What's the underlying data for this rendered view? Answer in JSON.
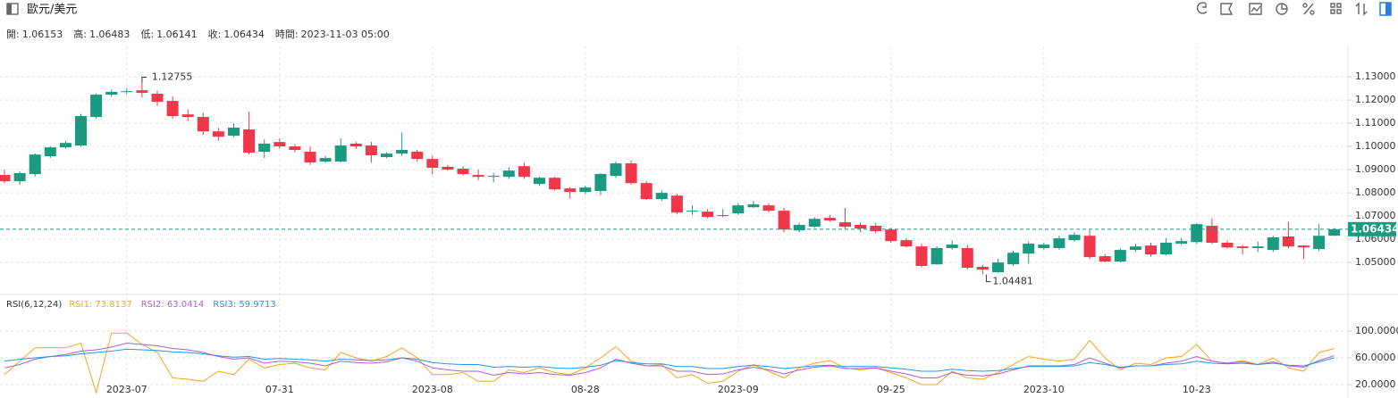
{
  "header": {
    "title": "歐元/美元",
    "info": [
      {
        "label": "開:",
        "value": 1.06153,
        "color": "#f0384a"
      },
      {
        "label": "高:",
        "value": 1.06483,
        "color": "#1a9a80"
      },
      {
        "label": "低:",
        "value": 1.06141,
        "color": "#f0384a"
      },
      {
        "label": "收:",
        "value": 1.06434,
        "color": "#1a9a80"
      },
      {
        "label": "時間:",
        "value": "2023-11-03 05:00",
        "color": "#222222"
      }
    ]
  },
  "chart_data": [
    {
      "type": "candlestick",
      "categories": [
        null,
        null,
        null,
        null,
        null,
        null,
        null,
        null,
        "2023-07",
        null,
        null,
        null,
        null,
        null,
        null,
        null,
        null,
        null,
        "07-31",
        null,
        null,
        null,
        null,
        null,
        null,
        null,
        null,
        null,
        "2023-08",
        null,
        null,
        null,
        null,
        null,
        null,
        null,
        null,
        null,
        "08-28",
        null,
        null,
        null,
        null,
        null,
        null,
        null,
        null,
        null,
        "2023-09",
        null,
        null,
        null,
        null,
        null,
        null,
        null,
        null,
        null,
        "09-25",
        null,
        null,
        null,
        null,
        null,
        null,
        null,
        null,
        null,
        "2023-10",
        null,
        null,
        null,
        null,
        null,
        null,
        null,
        null,
        null,
        "10-23",
        null,
        null,
        null,
        null,
        null,
        null,
        null,
        null,
        null
      ],
      "open": [
        1.0877,
        1.085,
        1.0881,
        1.0958,
        1.0996,
        1.1004,
        1.1127,
        1.1223,
        1.1235,
        1.1242,
        1.1227,
        1.1196,
        1.1138,
        1.1127,
        1.1065,
        1.1046,
        1.1073,
        1.0977,
        1.1019,
        1.1,
        1.0977,
        1.0935,
        1.0935,
        1.1012,
        1.1004,
        1.0954,
        1.0969,
        1.0977,
        1.0946,
        1.0912,
        1.0904,
        1.0877,
        1.0869,
        1.0869,
        1.0915,
        1.0838,
        1.0865,
        1.0819,
        1.0804,
        1.0808,
        1.0873,
        1.0927,
        1.0842,
        1.0773,
        1.0788,
        1.0719,
        1.0719,
        1.07,
        1.0712,
        1.0738,
        1.0746,
        1.0723,
        1.0638,
        1.0654,
        1.0692,
        1.0673,
        1.0662,
        1.0658,
        1.0642,
        1.0596,
        1.0569,
        1.0492,
        1.0562,
        1.0562,
        1.0481,
        1.0458,
        1.0492,
        1.0538,
        1.0562,
        1.0562,
        1.0596,
        1.0615,
        1.0527,
        1.0504,
        1.0554,
        1.0573,
        1.0535,
        1.0581,
        1.0588,
        1.0658,
        1.0585,
        1.0569,
        1.0562,
        1.0554,
        1.0612,
        1.0573,
        1.0558,
        1.06153
      ],
      "high": [
        1.09,
        1.0892,
        1.097,
        1.1,
        1.1025,
        1.114,
        1.1228,
        1.1245,
        1.125,
        1.12755,
        1.124,
        1.1215,
        1.116,
        1.1145,
        1.108,
        1.11,
        1.115,
        1.103,
        1.1035,
        1.101,
        1.1,
        1.096,
        1.1035,
        1.102,
        1.102,
        1.0975,
        1.106,
        1.0985,
        1.096,
        1.092,
        1.0915,
        1.09,
        1.0885,
        1.091,
        1.093,
        1.087,
        1.087,
        1.0825,
        1.083,
        1.0885,
        1.0935,
        1.094,
        1.085,
        1.081,
        1.0795,
        1.0745,
        1.073,
        1.073,
        1.0755,
        1.0765,
        1.0755,
        1.0735,
        1.067,
        1.0695,
        1.0705,
        1.0735,
        1.067,
        1.067,
        1.065,
        1.0605,
        1.058,
        1.057,
        1.0595,
        1.0575,
        1.049,
        1.0515,
        1.055,
        1.059,
        1.0585,
        1.0615,
        1.063,
        1.064,
        1.0535,
        1.056,
        1.058,
        1.0585,
        1.0605,
        1.0605,
        1.067,
        1.069,
        1.0595,
        1.0575,
        1.059,
        1.0615,
        1.0675,
        1.0575,
        1.0665,
        1.06483
      ],
      "low": [
        1.0842,
        1.0835,
        1.087,
        1.095,
        1.099,
        1.1,
        1.112,
        1.1215,
        1.1225,
        1.121,
        1.1175,
        1.112,
        1.111,
        1.105,
        1.1025,
        1.104,
        1.0965,
        1.095,
        1.099,
        1.0975,
        1.092,
        1.093,
        1.093,
        1.099,
        1.093,
        1.095,
        1.096,
        1.0935,
        1.088,
        1.0895,
        1.0875,
        1.0855,
        1.0845,
        1.086,
        1.086,
        1.083,
        1.081,
        1.0775,
        1.0795,
        1.079,
        1.0865,
        1.0835,
        1.077,
        1.0765,
        1.071,
        1.0705,
        1.069,
        1.0695,
        1.0705,
        1.0735,
        1.0715,
        1.063,
        1.063,
        1.065,
        1.0675,
        1.0645,
        1.063,
        1.0625,
        1.0585,
        1.0565,
        1.048,
        1.049,
        1.0555,
        1.047,
        1.04481,
        1.0455,
        1.0485,
        1.0495,
        1.0555,
        1.0555,
        1.059,
        1.0515,
        1.05,
        1.05,
        1.0545,
        1.0525,
        1.053,
        1.0575,
        1.058,
        1.058,
        1.056,
        1.0535,
        1.0545,
        1.0545,
        1.056,
        1.0515,
        1.055,
        1.06141
      ],
      "close": [
        1.085,
        1.0885,
        1.0965,
        1.0996,
        1.1015,
        1.1131,
        1.1223,
        1.1235,
        1.1238,
        1.1231,
        1.1192,
        1.1131,
        1.1127,
        1.1065,
        1.1042,
        1.1081,
        1.0973,
        1.1012,
        1.1,
        1.0985,
        1.0931,
        1.095,
        1.1004,
        1.1,
        1.0962,
        1.0969,
        1.0985,
        1.0946,
        1.0908,
        1.09,
        1.0881,
        1.0869,
        1.0873,
        1.0896,
        1.0869,
        1.0865,
        1.0815,
        1.0804,
        1.0823,
        1.0881,
        1.0927,
        1.0842,
        1.0773,
        1.08,
        1.0715,
        1.0723,
        1.0696,
        1.0704,
        1.0746,
        1.075,
        1.0723,
        1.0642,
        1.0662,
        1.0688,
        1.0681,
        1.0654,
        1.0646,
        1.0635,
        1.0592,
        1.0569,
        1.0485,
        1.0562,
        1.0577,
        1.0477,
        1.0469,
        1.05,
        1.0542,
        1.0581,
        1.0577,
        1.0604,
        1.0619,
        1.0523,
        1.0504,
        1.0554,
        1.0569,
        1.0535,
        1.0585,
        1.0592,
        1.0665,
        1.0585,
        1.0565,
        1.0562,
        1.0569,
        1.0608,
        1.0569,
        1.0565,
        1.0615,
        1.06434
      ],
      "up_color": "#1a9a80",
      "down_color": "#f0384a",
      "ylim": [
        1.0362,
        1.1431
      ],
      "yticks": [
        {
          "value": 1.05,
          "label": "1.05000"
        },
        {
          "value": 1.06,
          "label": "1.06000"
        },
        {
          "value": 1.07,
          "label": "1.07000"
        },
        {
          "value": 1.08,
          "label": "1.08000"
        },
        {
          "value": 1.09,
          "label": "1.09000"
        },
        {
          "value": 1.1,
          "label": "1.10000"
        },
        {
          "value": 1.11,
          "label": "1.11000"
        },
        {
          "value": 1.12,
          "label": "1.12000"
        },
        {
          "value": 1.13,
          "label": "1.13000"
        }
      ],
      "grid": true,
      "last_price": {
        "value": 1.06434,
        "label": "1.06434"
      },
      "annotations": [
        {
          "value": 1.12755,
          "label": "1.12755"
        },
        {
          "value": 1.04481,
          "label": "1.04481"
        }
      ]
    },
    {
      "type": "line",
      "title": "RSI(6,12,24)",
      "series": [
        {
          "name": "RSI1: 73.8137",
          "color": "#f5a623",
          "values": [
            35,
            55,
            75,
            75,
            75,
            82,
            8,
            97,
            97,
            80,
            68,
            30,
            28,
            25,
            40,
            35,
            58,
            45,
            50,
            52,
            45,
            42,
            68,
            60,
            55,
            62,
            75,
            60,
            35,
            35,
            38,
            25,
            25,
            42,
            38,
            45,
            38,
            35,
            45,
            60,
            77,
            55,
            48,
            50,
            30,
            35,
            22,
            25,
            40,
            50,
            40,
            30,
            45,
            52,
            56,
            45,
            42,
            45,
            38,
            30,
            20,
            20,
            40,
            30,
            28,
            38,
            50,
            62,
            58,
            55,
            58,
            86,
            60,
            42,
            52,
            50,
            60,
            62,
            80,
            55,
            52,
            56,
            50,
            60,
            45,
            40,
            68,
            73.8137
          ]
        },
        {
          "name": "RSI2: 63.0414",
          "color": "#b15fd1",
          "values": [
            45,
            50,
            58,
            62,
            65,
            70,
            72,
            76,
            82,
            80,
            78,
            74,
            72,
            68,
            62,
            58,
            60,
            52,
            55,
            54,
            52,
            48,
            55,
            53,
            52,
            54,
            60,
            55,
            45,
            42,
            40,
            40,
            34,
            38,
            36,
            38,
            35,
            34,
            38,
            45,
            58,
            52,
            48,
            48,
            40,
            40,
            35,
            36,
            42,
            46,
            42,
            36,
            42,
            46,
            48,
            44,
            44,
            45,
            40,
            36,
            30,
            30,
            38,
            34,
            33,
            36,
            42,
            48,
            48,
            48,
            50,
            60,
            52,
            45,
            48,
            48,
            52,
            55,
            62,
            55,
            52,
            54,
            50,
            54,
            48,
            46,
            56,
            63.0414
          ]
        },
        {
          "name": "RSI3: 59.9713",
          "color": "#2a95e8",
          "values": [
            55,
            58,
            60,
            62,
            63,
            66,
            68,
            70,
            73,
            72,
            71,
            69,
            68,
            66,
            63,
            61,
            62,
            58,
            59,
            58,
            57,
            55,
            58,
            57,
            56,
            57,
            60,
            58,
            53,
            51,
            50,
            50,
            46,
            47,
            46,
            47,
            45,
            44,
            46,
            49,
            56,
            53,
            51,
            51,
            47,
            47,
            44,
            44,
            47,
            49,
            47,
            44,
            46,
            48,
            49,
            47,
            47,
            47,
            45,
            43,
            40,
            40,
            43,
            41,
            40,
            41,
            44,
            47,
            47,
            47,
            48,
            53,
            50,
            46,
            48,
            48,
            50,
            51,
            55,
            52,
            51,
            52,
            50,
            52,
            49,
            48,
            54,
            59.9713
          ]
        }
      ],
      "ylim": [
        0,
        120
      ],
      "yticks": [
        {
          "value": 20,
          "label": "20.0000"
        },
        {
          "value": 60,
          "label": "60.0000"
        },
        {
          "value": 100,
          "label": "100.0000"
        }
      ]
    }
  ]
}
